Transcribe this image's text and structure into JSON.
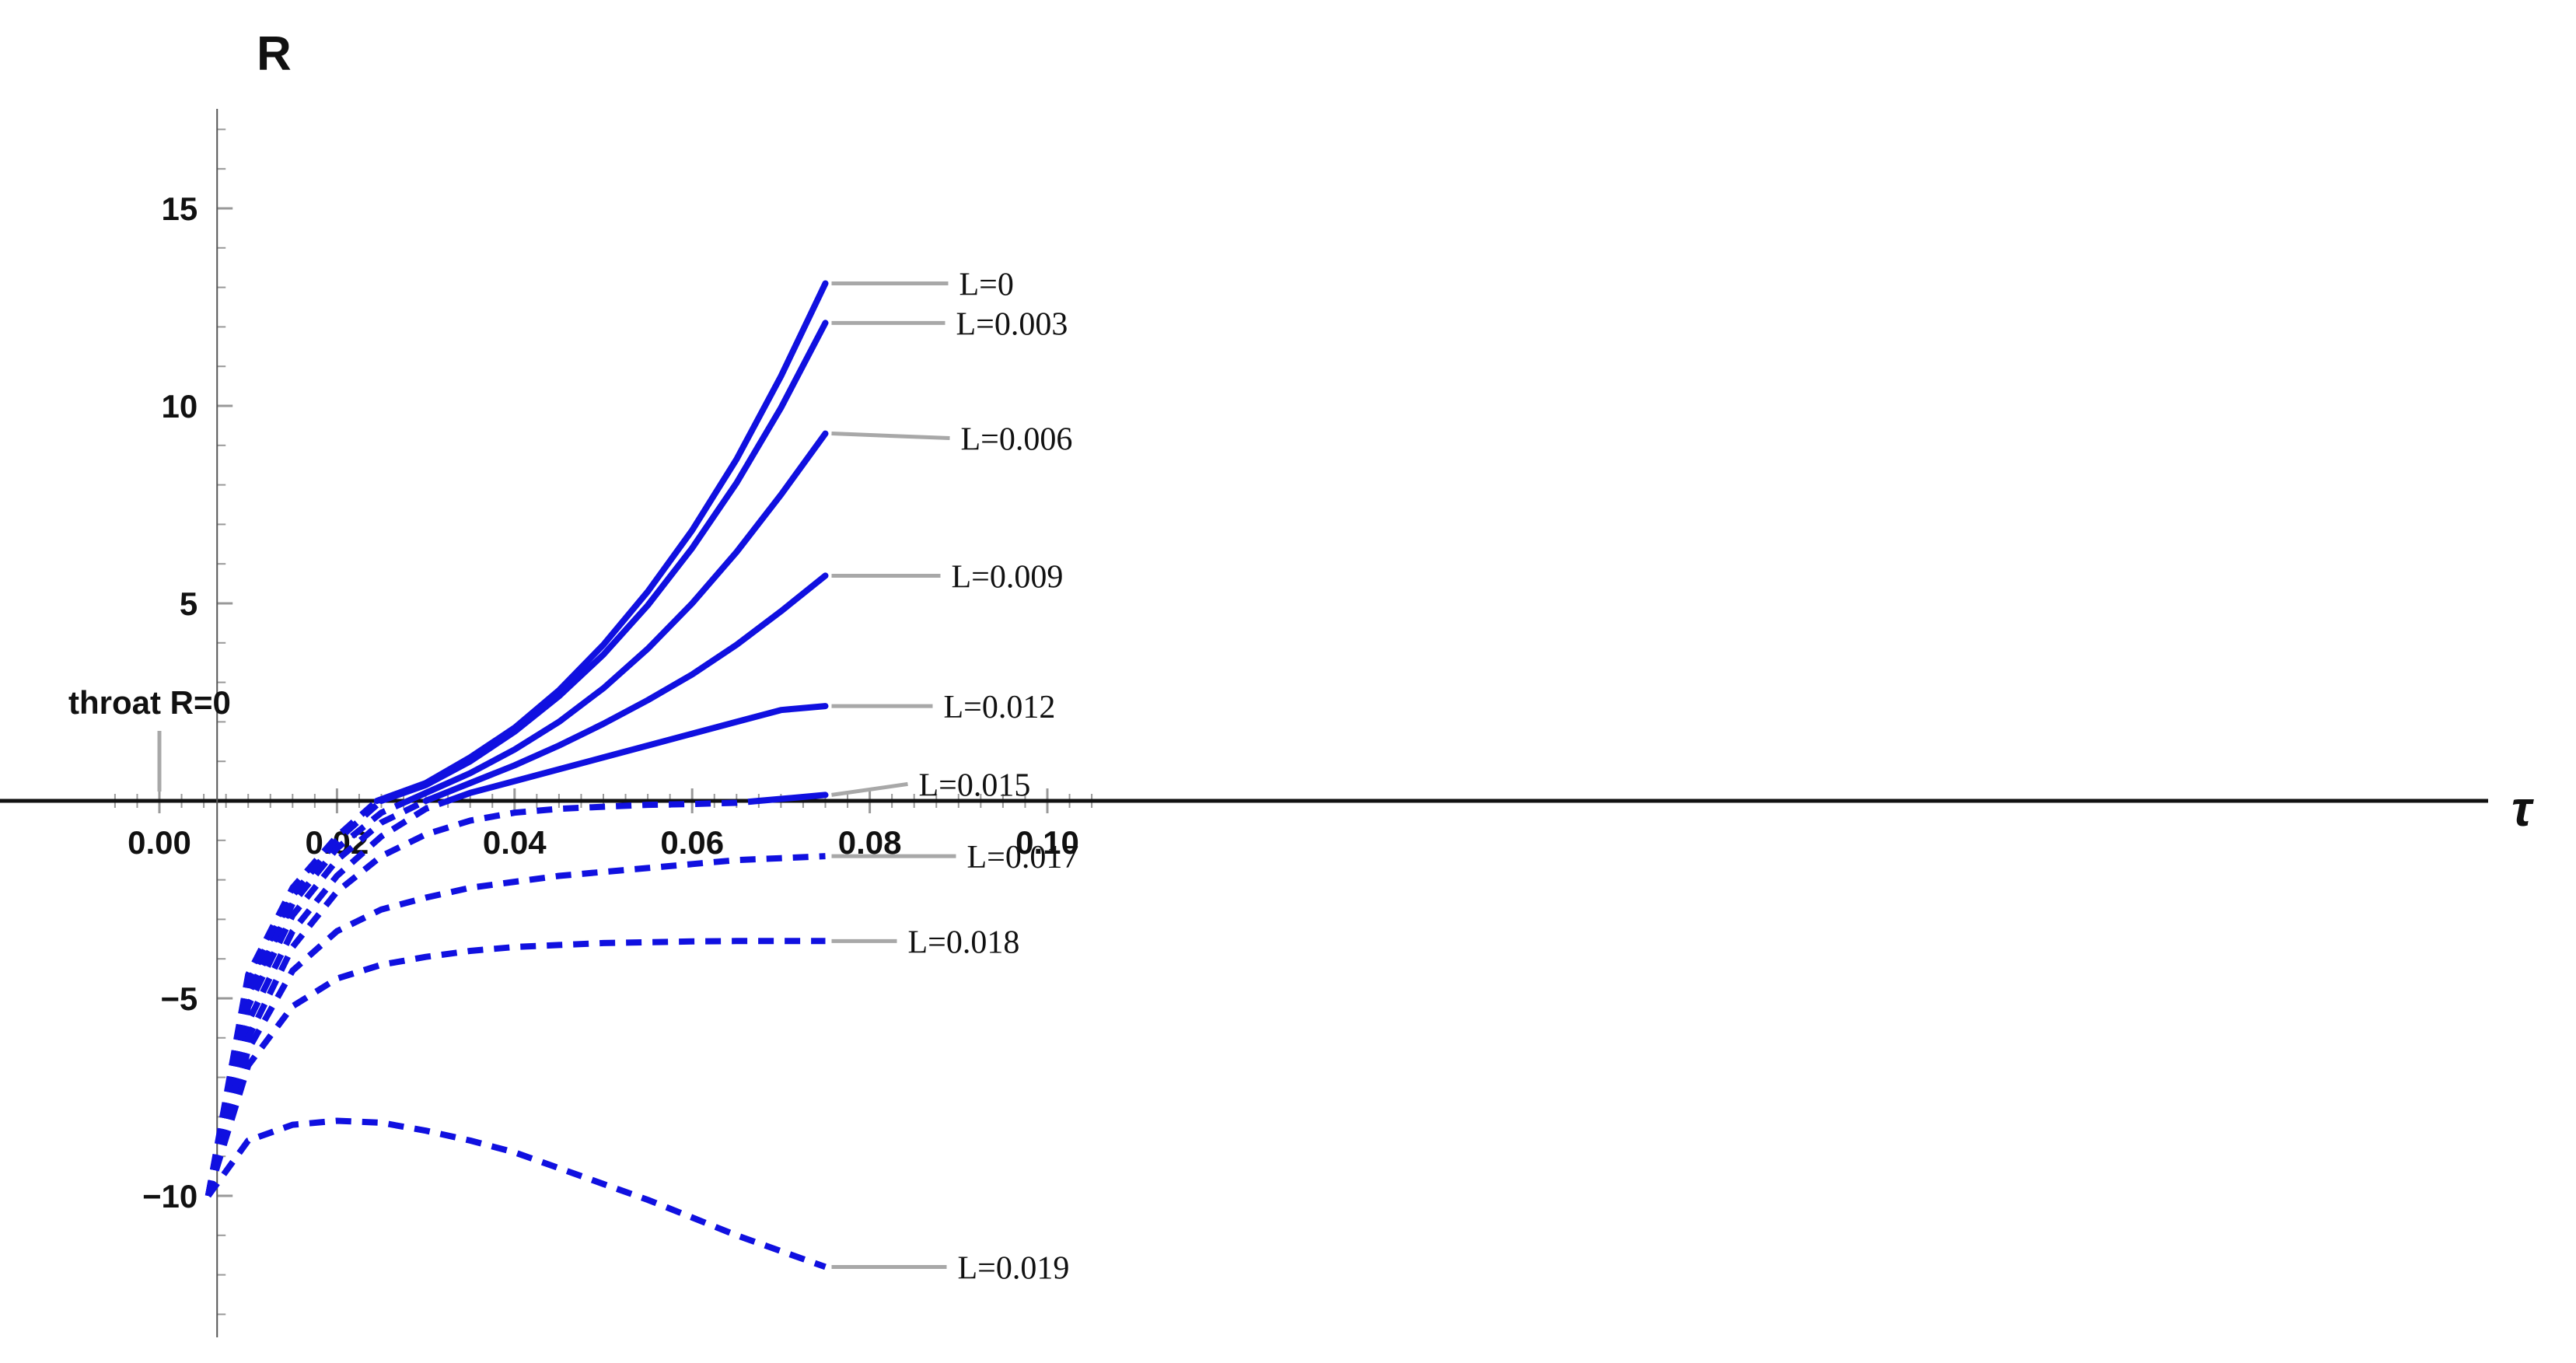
{
  "chart_data": {
    "type": "line",
    "title": "",
    "xlabel": "τ",
    "ylabel": "R",
    "xlim": [
      -0.0055,
      0.106
    ],
    "ylim": [
      -13.5,
      17.5
    ],
    "x_ticks": [
      "0.00",
      "0.02",
      "0.04",
      "0.06",
      "0.08",
      "0.10"
    ],
    "y_ticks": [
      "15",
      "10",
      "5",
      "−5",
      "−10"
    ],
    "grid": false,
    "annotation": {
      "text": "throat R=0",
      "x": 0.0,
      "y": 0
    },
    "colors": {
      "curve": "#1010e0",
      "axis": "#111111",
      "leader": "#a8a8a8",
      "minor_tick": "#999999"
    },
    "line_style_note": "solid where R > 0, dashed where R < 0",
    "series": [
      {
        "name": "L=0",
        "x": [
          0.0055,
          0.01,
          0.015,
          0.02,
          0.0245,
          0.03,
          0.035,
          0.04,
          0.045,
          0.05,
          0.055,
          0.06,
          0.065,
          0.07,
          0.075
        ],
        "y": [
          -10.0,
          -4.4,
          -2.2,
          -0.9,
          0.0,
          0.45,
          1.1,
          1.85,
          2.8,
          3.95,
          5.3,
          6.85,
          8.65,
          10.75,
          13.1
        ]
      },
      {
        "name": "L=0.003",
        "x": [
          0.0055,
          0.01,
          0.015,
          0.02,
          0.025,
          0.03,
          0.035,
          0.04,
          0.045,
          0.05,
          0.055,
          0.06,
          0.065,
          0.07,
          0.075
        ],
        "y": [
          -10.0,
          -4.6,
          -2.4,
          -1.0,
          0.0,
          0.4,
          1.0,
          1.75,
          2.65,
          3.7,
          4.95,
          6.4,
          8.05,
          9.95,
          12.1
        ]
      },
      {
        "name": "L=0.006",
        "x": [
          0.0055,
          0.01,
          0.015,
          0.02,
          0.025,
          0.03,
          0.035,
          0.04,
          0.045,
          0.05,
          0.055,
          0.06,
          0.065,
          0.07,
          0.075
        ],
        "y": [
          -10.0,
          -4.9,
          -2.6,
          -1.2,
          -0.3,
          0.2,
          0.7,
          1.3,
          2.0,
          2.85,
          3.85,
          5.0,
          6.3,
          7.75,
          9.3
        ]
      },
      {
        "name": "L=0.009",
        "x": [
          0.0055,
          0.01,
          0.015,
          0.02,
          0.025,
          0.03,
          0.035,
          0.04,
          0.045,
          0.05,
          0.055,
          0.06,
          0.065,
          0.07,
          0.075
        ],
        "y": [
          -10.0,
          -5.2,
          -2.9,
          -1.5,
          -0.55,
          0.0,
          0.45,
          0.9,
          1.4,
          1.95,
          2.55,
          3.2,
          3.95,
          4.8,
          5.7
        ]
      },
      {
        "name": "L=0.012",
        "x": [
          0.0055,
          0.01,
          0.015,
          0.02,
          0.025,
          0.03,
          0.035,
          0.04,
          0.045,
          0.05,
          0.055,
          0.06,
          0.065,
          0.07,
          0.075
        ],
        "y": [
          -10.0,
          -5.6,
          -3.3,
          -1.9,
          -0.9,
          -0.2,
          0.2,
          0.5,
          0.8,
          1.1,
          1.4,
          1.7,
          2.0,
          2.3,
          2.4
        ]
      },
      {
        "name": "L=0.015",
        "x": [
          0.0055,
          0.01,
          0.015,
          0.02,
          0.025,
          0.03,
          0.035,
          0.04,
          0.045,
          0.05,
          0.055,
          0.06,
          0.065,
          0.07,
          0.075
        ],
        "y": [
          -10.0,
          -6.0,
          -3.7,
          -2.3,
          -1.4,
          -0.85,
          -0.5,
          -0.3,
          -0.2,
          -0.15,
          -0.1,
          -0.08,
          -0.05,
          0.05,
          0.15
        ]
      },
      {
        "name": "L=0.017",
        "x": [
          0.0055,
          0.01,
          0.015,
          0.02,
          0.025,
          0.03,
          0.035,
          0.04,
          0.045,
          0.05,
          0.055,
          0.06,
          0.065,
          0.07,
          0.075
        ],
        "y": [
          -10.0,
          -6.3,
          -4.3,
          -3.3,
          -2.75,
          -2.45,
          -2.2,
          -2.05,
          -1.9,
          -1.8,
          -1.7,
          -1.6,
          -1.5,
          -1.45,
          -1.4
        ]
      },
      {
        "name": "L=0.018",
        "x": [
          0.0055,
          0.01,
          0.015,
          0.02,
          0.025,
          0.03,
          0.035,
          0.04,
          0.045,
          0.05,
          0.055,
          0.06,
          0.065,
          0.07,
          0.075
        ],
        "y": [
          -10.0,
          -6.7,
          -5.2,
          -4.5,
          -4.15,
          -3.95,
          -3.8,
          -3.7,
          -3.65,
          -3.6,
          -3.58,
          -3.56,
          -3.55,
          -3.55,
          -3.55
        ]
      },
      {
        "name": "L=0.019",
        "x": [
          0.0055,
          0.01,
          0.015,
          0.02,
          0.025,
          0.03,
          0.035,
          0.04,
          0.045,
          0.05,
          0.055,
          0.06,
          0.065,
          0.07,
          0.075
        ],
        "y": [
          -10.0,
          -8.6,
          -8.2,
          -8.1,
          -8.15,
          -8.35,
          -8.6,
          -8.9,
          -9.3,
          -9.7,
          -10.1,
          -10.55,
          -11.0,
          -11.4,
          -11.8
        ]
      }
    ]
  }
}
